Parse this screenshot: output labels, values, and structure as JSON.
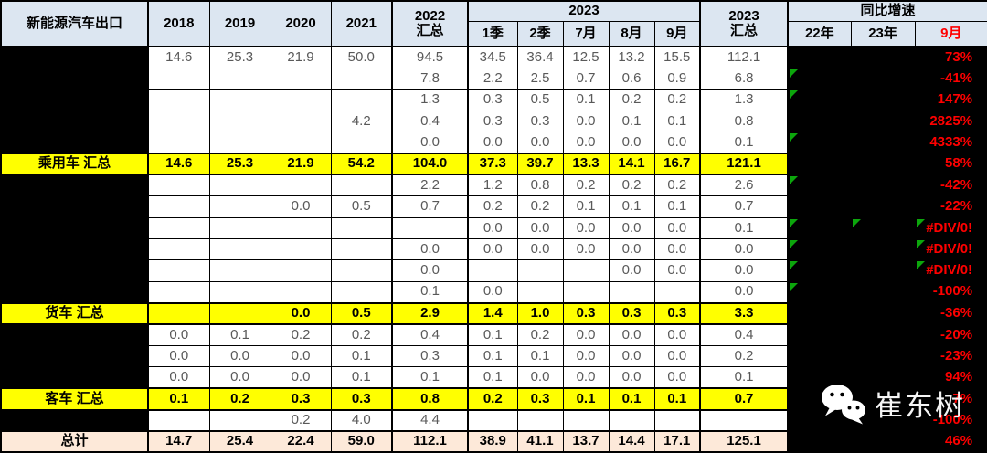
{
  "table": {
    "title": "新能源汽车出口",
    "year_columns": [
      "2018",
      "2019",
      "2020",
      "2021"
    ],
    "col_2022_total_line1": "2022",
    "col_2022_total_line2": "汇总",
    "group_2023_label": "2023",
    "period_columns": [
      "1季",
      "2季",
      "7月",
      "8月",
      "9月"
    ],
    "col_2023_total_line1": "2023",
    "col_2023_total_line2": "汇总",
    "growth_group_label": "同比增速",
    "growth_columns": [
      "22年",
      "23年",
      "9月"
    ],
    "rows": [
      {
        "label": "",
        "style": "data",
        "values": [
          "14.6",
          "25.3",
          "21.9",
          "50.0",
          "94.5",
          "34.5",
          "36.4",
          "12.5",
          "13.2",
          "15.5",
          "112.1"
        ],
        "growth_sep": "73%",
        "err_marks": [
          false,
          false,
          false
        ]
      },
      {
        "label": "",
        "style": "data",
        "values": [
          "",
          "",
          "",
          "",
          "7.8",
          "2.2",
          "2.5",
          "0.7",
          "0.6",
          "0.9",
          "6.8"
        ],
        "growth_sep": "-41%",
        "err_marks": [
          true,
          false,
          false
        ]
      },
      {
        "label": "",
        "style": "data",
        "values": [
          "",
          "",
          "",
          "",
          "1.3",
          "0.3",
          "0.5",
          "0.1",
          "0.2",
          "0.2",
          "1.3"
        ],
        "growth_sep": "147%",
        "err_marks": [
          true,
          false,
          false
        ]
      },
      {
        "label": "",
        "style": "data",
        "values": [
          "",
          "",
          "",
          "4.2",
          "0.4",
          "0.3",
          "0.3",
          "0.0",
          "0.1",
          "0.1",
          "0.8"
        ],
        "growth_sep": "2825%",
        "err_marks": [
          false,
          false,
          false
        ]
      },
      {
        "label": "",
        "style": "data",
        "values": [
          "",
          "",
          "",
          "",
          "0.0",
          "0.0",
          "0.0",
          "0.0",
          "0.0",
          "0.0",
          "0.1"
        ],
        "growth_sep": "4333%",
        "err_marks": [
          true,
          false,
          false
        ]
      },
      {
        "label": "乘用车 汇总",
        "style": "subtotal",
        "values": [
          "14.6",
          "25.3",
          "21.9",
          "54.2",
          "104.0",
          "37.3",
          "39.7",
          "13.3",
          "14.1",
          "16.7",
          "121.1"
        ],
        "growth_sep": "58%",
        "err_marks": [
          false,
          false,
          false
        ]
      },
      {
        "label": "",
        "style": "data",
        "values": [
          "",
          "",
          "",
          "",
          "2.2",
          "1.2",
          "0.8",
          "0.2",
          "0.2",
          "0.2",
          "2.6"
        ],
        "growth_sep": "-42%",
        "err_marks": [
          true,
          false,
          false
        ]
      },
      {
        "label": "",
        "style": "data",
        "values": [
          "",
          "",
          "0.0",
          "0.5",
          "0.7",
          "0.2",
          "0.2",
          "0.1",
          "0.1",
          "0.1",
          "0.7"
        ],
        "growth_sep": "-22%",
        "err_marks": [
          false,
          false,
          false
        ]
      },
      {
        "label": "",
        "style": "data",
        "values": [
          "",
          "",
          "",
          "",
          "",
          "0.0",
          "0.0",
          "0.0",
          "0.0",
          "0.0",
          "0.1"
        ],
        "growth_sep": "#DIV/0!",
        "err_marks": [
          true,
          true,
          true
        ]
      },
      {
        "label": "",
        "style": "data",
        "values": [
          "",
          "",
          "",
          "",
          "0.0",
          "0.0",
          "0.0",
          "0.0",
          "0.0",
          "0.0",
          "0.0"
        ],
        "growth_sep": "#DIV/0!",
        "err_marks": [
          true,
          false,
          true
        ]
      },
      {
        "label": "",
        "style": "data",
        "values": [
          "",
          "",
          "",
          "",
          "0.0",
          "",
          "",
          "",
          "0.0",
          "0.0",
          "0.0"
        ],
        "growth_sep": "#DIV/0!",
        "err_marks": [
          true,
          false,
          true
        ]
      },
      {
        "label": "",
        "style": "data",
        "values": [
          "",
          "",
          "",
          "",
          "0.1",
          "0.0",
          "",
          "",
          "",
          "",
          "0.0"
        ],
        "growth_sep": "-100%",
        "err_marks": [
          true,
          false,
          false
        ]
      },
      {
        "label": "货车 汇总",
        "style": "subtotal",
        "values": [
          "",
          "",
          "0.0",
          "0.5",
          "2.9",
          "1.4",
          "1.0",
          "0.3",
          "0.3",
          "0.3",
          "3.3"
        ],
        "growth_sep": "-36%",
        "err_marks": [
          false,
          false,
          false
        ]
      },
      {
        "label": "",
        "style": "data",
        "values": [
          "0.0",
          "0.1",
          "0.2",
          "0.2",
          "0.4",
          "0.1",
          "0.2",
          "0.0",
          "0.0",
          "0.0",
          "0.4"
        ],
        "growth_sep": "-20%",
        "err_marks": [
          false,
          false,
          false
        ]
      },
      {
        "label": "",
        "style": "data",
        "values": [
          "0.0",
          "0.0",
          "0.0",
          "0.1",
          "0.3",
          "0.1",
          "0.1",
          "0.0",
          "0.0",
          "0.0",
          "0.2"
        ],
        "growth_sep": "-23%",
        "err_marks": [
          false,
          false,
          false
        ]
      },
      {
        "label": "",
        "style": "data",
        "values": [
          "0.0",
          "0.0",
          "0.0",
          "0.1",
          "0.1",
          "0.1",
          "0.0",
          "0.0",
          "0.0",
          "0.0",
          "0.1"
        ],
        "growth_sep": "94%",
        "err_marks": [
          false,
          false,
          false
        ]
      },
      {
        "label": "客车 汇总",
        "style": "subtotal",
        "values": [
          "0.1",
          "0.2",
          "0.3",
          "0.3",
          "0.8",
          "0.2",
          "0.3",
          "0.1",
          "0.1",
          "0.1",
          "0.7"
        ],
        "growth_sep": "7%",
        "err_marks": [
          false,
          false,
          false
        ]
      },
      {
        "label": "",
        "style": "data",
        "values": [
          "",
          "",
          "0.2",
          "4.0",
          "4.4",
          "",
          "",
          "",
          "",
          "",
          ""
        ],
        "growth_sep": "-100%",
        "err_marks": [
          false,
          false,
          false
        ]
      },
      {
        "label": "总计",
        "style": "grand",
        "values": [
          "14.7",
          "25.4",
          "22.4",
          "59.0",
          "112.1",
          "38.9",
          "41.1",
          "13.7",
          "14.4",
          "17.1",
          "125.1"
        ],
        "growth_sep": "46%",
        "err_marks": [
          false,
          false,
          false
        ]
      }
    ]
  },
  "watermark": {
    "brand": "崔东树"
  },
  "colors": {
    "header_bg": "#DCE6F1",
    "subtotal_bg": "#FFFF00",
    "grand_total_bg": "#FDE9D9",
    "growth_text_red": "#FF0000",
    "redacted_black": "#000000",
    "error_marker_green": "#0CA60C",
    "value_text": "#595959"
  }
}
